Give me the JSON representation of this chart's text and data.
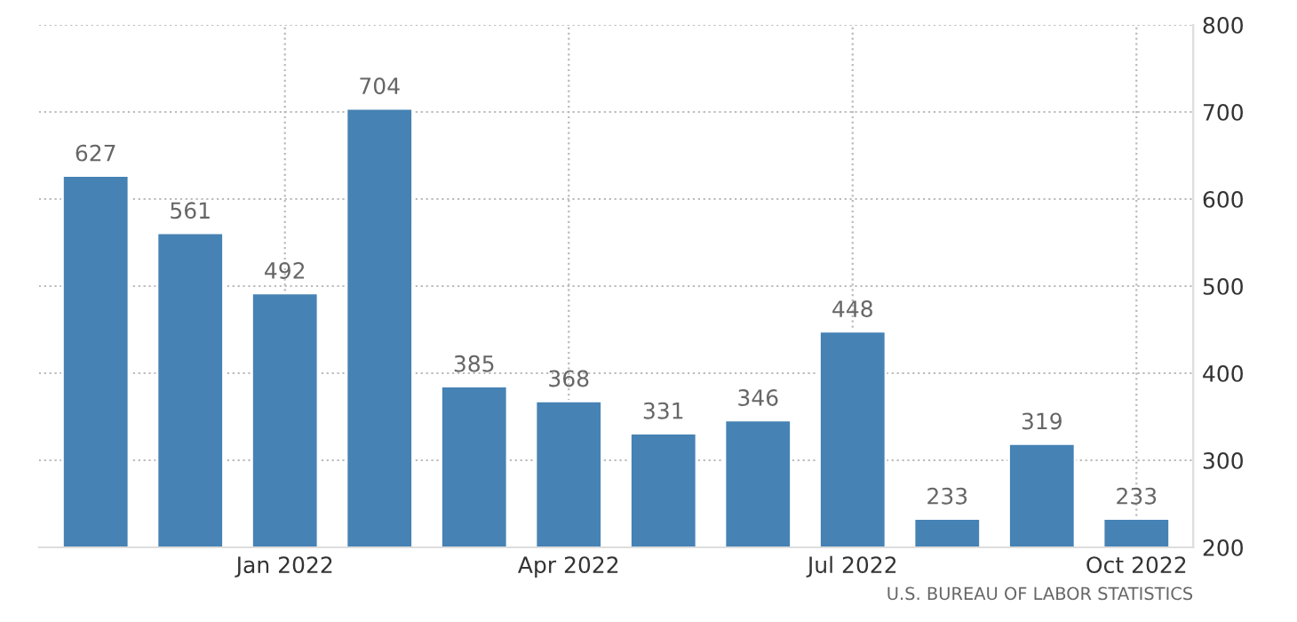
{
  "chart_data": {
    "type": "bar",
    "categories": [
      null,
      null,
      "Jan 2022",
      null,
      null,
      "Apr 2022",
      null,
      null,
      "Jul 2022",
      null,
      null,
      "Oct 2022"
    ],
    "values": [
      627,
      561,
      492,
      704,
      385,
      368,
      331,
      346,
      448,
      233,
      319,
      233
    ],
    "color": "#4682b4",
    "ylim": [
      200,
      800
    ],
    "yticks": [
      200,
      300,
      400,
      500,
      600,
      700,
      800
    ],
    "grid": true,
    "data_labels": true,
    "annotations": [
      "U.S. BUREAU OF LABOR STATISTICS"
    ]
  }
}
